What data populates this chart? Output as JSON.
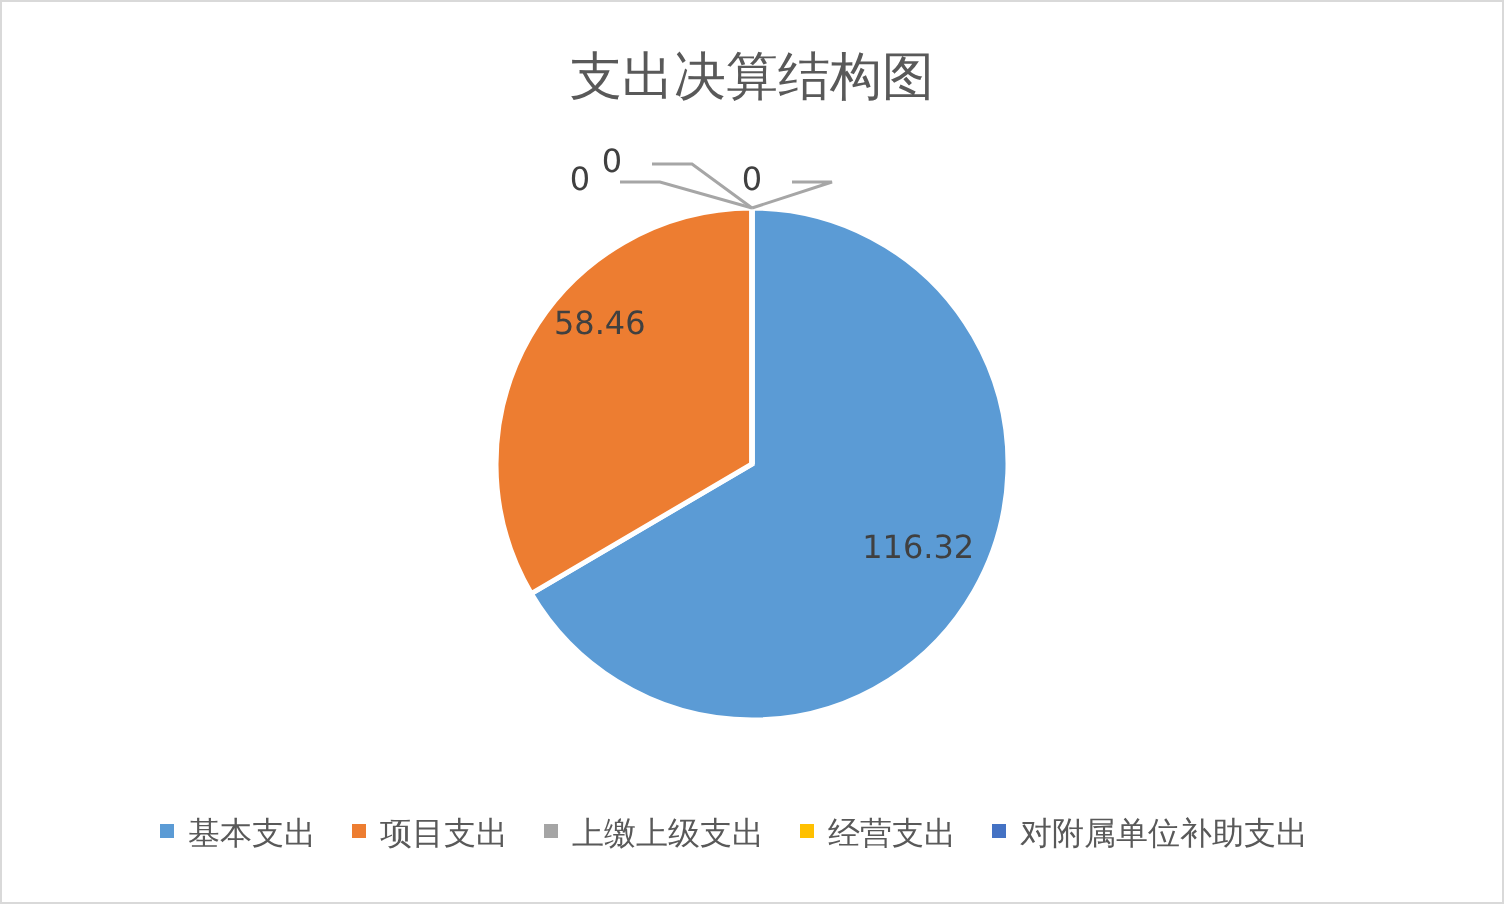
{
  "chart_data": {
    "type": "pie",
    "title": "支出决算结构图",
    "categories": [
      "基本支出",
      "项目支出",
      "上缴上级支出",
      "经营支出",
      "对附属单位补助支出"
    ],
    "values": [
      116.32,
      58.46,
      0,
      0,
      0
    ],
    "colors": [
      "#5b9bd5",
      "#ed7d31",
      "#a5a5a5",
      "#ffc000",
      "#4472c4"
    ],
    "value_labels": [
      "116.32",
      "58.46",
      "0",
      "0",
      "0"
    ],
    "legend": "bottom"
  }
}
